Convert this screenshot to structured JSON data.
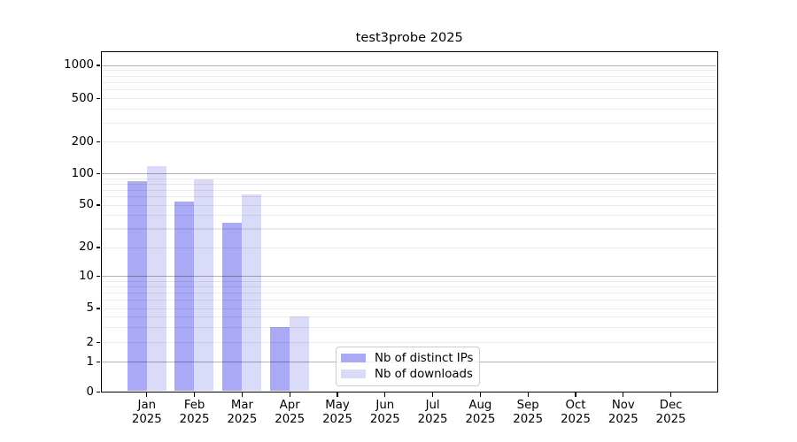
{
  "title": "test3probe 2025",
  "chart_data": {
    "type": "bar",
    "title": "test3probe 2025",
    "xlabel": "",
    "ylabel": "",
    "categories": [
      "Jan",
      "Feb",
      "Mar",
      "Apr",
      "May",
      "Jun",
      "Jul",
      "Aug",
      "Sep",
      "Oct",
      "Nov",
      "Dec"
    ],
    "category_year": "2025",
    "series": [
      {
        "name": "Nb of distinct IPs",
        "color": "#a9a9f5",
        "values": [
          84,
          54,
          34,
          3,
          0,
          0,
          0,
          0,
          0,
          0,
          0,
          0
        ]
      },
      {
        "name": "Nb of downloads",
        "color": "#dadaf9",
        "values": [
          118,
          87,
          63,
          4,
          0,
          0,
          0,
          0,
          0,
          0,
          0,
          0
        ]
      }
    ],
    "yticks": [
      0,
      1,
      2,
      5,
      10,
      20,
      50,
      100,
      200,
      500,
      1000
    ],
    "major_grid_values": [
      1,
      10,
      100,
      1000
    ],
    "scale": "symlog",
    "ylim": [
      0,
      1340
    ],
    "grid": "horizontal major and minor, drawn over bars",
    "legend_position": "lower center-left inside axes"
  },
  "legend": {
    "items": [
      {
        "label": "Nb of distinct IPs",
        "color": "#a9a9f5"
      },
      {
        "label": "Nb of downloads",
        "color": "#dadaf9"
      }
    ]
  },
  "colors": {
    "background": "#ffffff",
    "axis": "#000000",
    "major_grid": "#0000004d",
    "minor_grid": "#00000014",
    "legend_border": "#cccccc",
    "text": "#000000"
  }
}
